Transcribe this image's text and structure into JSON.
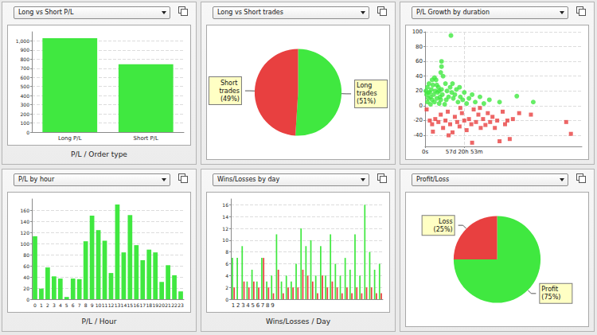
{
  "chart_data": [
    {
      "type": "bar",
      "title": "Long vs Short P/L",
      "xlabel": "P/L / Order type",
      "categories": [
        "Long P/L",
        "Short P/L"
      ],
      "values": [
        1030,
        745
      ],
      "color": "#40e840",
      "ylim": [
        0,
        1100
      ],
      "yticks": [
        0,
        100,
        200,
        300,
        400,
        500,
        600,
        700,
        800,
        900,
        {
          "value": 1000,
          "label": "1,000"
        }
      ],
      "grid": true
    },
    {
      "type": "pie",
      "title": "Long vs Short trades",
      "categories": [
        "Long trades",
        "Short trades"
      ],
      "values": [
        51,
        49
      ],
      "value_labels": [
        "(51%)",
        "(49%)"
      ],
      "colors": [
        "#40e840",
        "#e84040"
      ],
      "data_labels": true
    },
    {
      "type": "scatter",
      "title": "P/L Growth by duration",
      "xlim": [
        0,
        20000000
      ],
      "xticks": [
        {
          "value": 0,
          "label": "0s"
        },
        {
          "value": 4999980,
          "label": "57d 20h 53m"
        }
      ],
      "ylim": [
        -55,
        100
      ],
      "yticks": [
        -40,
        -20,
        0,
        20,
        40,
        60,
        80,
        100
      ],
      "grid": true,
      "series": [
        {
          "color": "#40e840",
          "marker": "circle",
          "x": [
            100000,
            200000,
            300000,
            400000,
            500000,
            600000,
            700000,
            800000,
            900000,
            1000000,
            1100000,
            1200000,
            1300000,
            1400000,
            1500000,
            1600000,
            1700000,
            1800000,
            1900000,
            2000000,
            2100000,
            2200000,
            2300000,
            2000000,
            2100000,
            2100000,
            3300000,
            2600000,
            2800000,
            3000000,
            3200000,
            3400000,
            3600000,
            3800000,
            4000000,
            4200000,
            4500000,
            4800000,
            5000000,
            5300000,
            5600000,
            6000000,
            6400000,
            7000000,
            7500000,
            8200000,
            9500000,
            11700000,
            13800000,
            300000,
            700000,
            1500000,
            2500000,
            2700000,
            3500000,
            900000,
            1200000,
            400000,
            1800000,
            4400000
          ],
          "values": [
            20,
            15,
            25,
            10,
            30,
            18,
            12,
            22,
            8,
            28,
            15,
            5,
            20,
            35,
            10,
            18,
            25,
            3,
            12,
            8,
            22,
            15,
            40,
            45,
            60,
            53,
            95,
            30,
            20,
            12,
            25,
            18,
            10,
            15,
            22,
            5,
            12,
            8,
            18,
            3,
            10,
            15,
            5,
            12,
            3,
            8,
            5,
            13,
            5,
            5,
            2,
            28,
            2,
            8,
            30,
            35,
            38,
            18,
            20,
            25
          ]
        },
        {
          "color": "#e84040",
          "marker": "square",
          "x": [
            200000,
            600000,
            900000,
            1300000,
            1700000,
            2000000,
            2300000,
            2600000,
            2900000,
            3200000,
            3500000,
            3800000,
            4100000,
            4400000,
            4700000,
            5000000,
            5300000,
            5600000,
            5900000,
            6200000,
            6500000,
            6800000,
            7100000,
            7400000,
            7700000,
            8000000,
            8300000,
            8600000,
            8900000,
            9200000,
            9500000,
            9900000,
            10200000,
            10500000,
            10800000,
            11200000,
            12000000,
            13500000,
            18000000,
            18600000,
            1000000,
            3000000,
            4500000,
            7000000,
            6000000
          ],
          "values": [
            -5,
            -20,
            -25,
            -18,
            -22,
            -12,
            -30,
            -20,
            -8,
            -25,
            -36,
            -15,
            -22,
            -28,
            -10,
            -20,
            -33,
            -18,
            -25,
            -5,
            -22,
            -12,
            -30,
            -18,
            -26,
            -10,
            -22,
            -15,
            -30,
            -20,
            -48,
            -8,
            -25,
            -20,
            -45,
            -18,
            -10,
            -12,
            -22,
            -38,
            -35,
            -40,
            -3,
            -3,
            -50
          ]
        }
      ]
    },
    {
      "type": "bar",
      "title": "P/L by hour",
      "xlabel": "P/L / Hour",
      "categories": [
        "0",
        "1",
        "2",
        "3",
        "4",
        "5",
        "6",
        "7",
        "8",
        "9",
        "10",
        "11",
        "12",
        "13",
        "14",
        "15",
        "16",
        "17",
        "18",
        "19",
        "20",
        "21",
        "22",
        "23"
      ],
      "values": [
        113,
        19,
        57,
        41,
        37,
        4,
        37,
        36,
        104,
        150,
        124,
        105,
        47,
        170,
        84,
        151,
        97,
        70,
        89,
        84,
        31,
        61,
        43,
        14
      ],
      "color": "#40e840",
      "ylim": [
        0,
        180
      ],
      "yticks": [
        0,
        20,
        40,
        60,
        80,
        100,
        120,
        140,
        160
      ],
      "grid": true
    },
    {
      "type": "bar",
      "title": "Wins/Losses by day",
      "xlabel": "Wins/Losses / Day",
      "categories": [
        "1",
        "2",
        "3",
        "4",
        "5",
        "6",
        "7",
        "8",
        "9",
        null,
        null,
        null,
        null,
        null,
        null,
        null,
        null,
        null,
        null,
        null,
        null,
        null,
        null,
        null,
        null,
        null,
        null,
        null,
        null,
        null,
        null
      ],
      "series": [
        {
          "color": "#40e840",
          "values": [
            7,
            7,
            9,
            3,
            5,
            3,
            7,
            3,
            4,
            11,
            3,
            4,
            3,
            6,
            12,
            9,
            10,
            4,
            9,
            4,
            11,
            6,
            4,
            7,
            5,
            11,
            4,
            16,
            8,
            5,
            6
          ]
        },
        {
          "color": "#e84040",
          "values": [
            2,
            0,
            3,
            2,
            3,
            2,
            7,
            2,
            1,
            5,
            1,
            2,
            2,
            2,
            5,
            4,
            3,
            1,
            4,
            2,
            3,
            2,
            1,
            2,
            1,
            2,
            1,
            2,
            2,
            1,
            1
          ]
        }
      ],
      "ylim": [
        0,
        17
      ],
      "yticks": [
        0,
        2,
        4,
        6,
        8,
        10,
        12,
        14,
        16
      ],
      "grid": true
    },
    {
      "type": "pie",
      "title": "Profit/Loss",
      "categories": [
        "Profit",
        "Loss"
      ],
      "values": [
        75,
        25
      ],
      "value_labels": [
        "(75%)",
        "(25%)"
      ],
      "colors": [
        "#40e840",
        "#e84040"
      ],
      "data_labels": true
    }
  ]
}
